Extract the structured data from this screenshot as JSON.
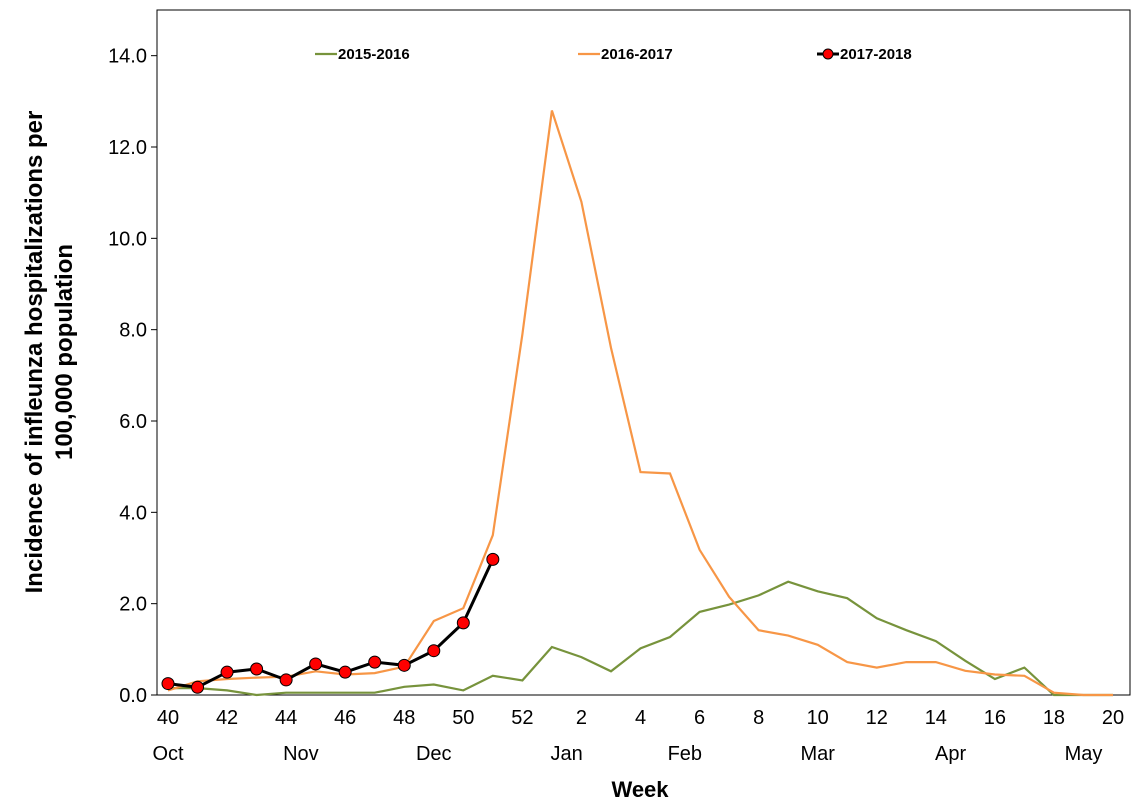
{
  "chart_data": {
    "type": "line",
    "xlabel": "Week",
    "ylabel": [
      "Incidence of infleunza hospitalizations per",
      "100,000 population"
    ],
    "categories": [
      "40",
      null,
      "42",
      null,
      "44",
      null,
      "46",
      null,
      "48",
      null,
      "50",
      null,
      "52",
      null,
      "2",
      null,
      "4",
      null,
      "6",
      null,
      "8",
      null,
      "10",
      null,
      "12",
      null,
      "14",
      null,
      "16",
      null,
      "18",
      null,
      "20"
    ],
    "months": [
      "Oct",
      null,
      null,
      null,
      null,
      null,
      null,
      null,
      null,
      null,
      null,
      null,
      null,
      null,
      null,
      null,
      null,
      null,
      null,
      null,
      null,
      null,
      null,
      null,
      null,
      null,
      null,
      null,
      null,
      null,
      null,
      null,
      null
    ],
    "month_labels": [
      {
        "index": 0,
        "label": "Oct"
      },
      {
        "index": 4.5,
        "label": "Nov"
      },
      {
        "index": 9,
        "label": "Dec"
      },
      {
        "index": 13.5,
        "label": "Jan"
      },
      {
        "index": 17.5,
        "label": "Feb"
      },
      {
        "index": 22,
        "label": "Mar"
      },
      {
        "index": 26.5,
        "label": "Apr"
      },
      {
        "index": 31,
        "label": "May"
      }
    ],
    "series": [
      {
        "name": "2015-2016",
        "color": "#77933c",
        "marker": false,
        "values": [
          0.15,
          0.15,
          0.1,
          0.0,
          0.05,
          0.05,
          0.05,
          0.05,
          0.18,
          0.23,
          0.1,
          0.42,
          0.32,
          1.05,
          0.83,
          0.52,
          1.02,
          1.27,
          1.82,
          1.98,
          2.18,
          2.48,
          2.27,
          2.12,
          1.68,
          1.42,
          1.18,
          0.75,
          0.35,
          0.6,
          0.0,
          0.0,
          0.0
        ]
      },
      {
        "name": "2016-2017",
        "color": "#f79646",
        "marker": false,
        "values": [
          0.1,
          0.3,
          0.35,
          0.38,
          0.4,
          0.52,
          0.45,
          0.48,
          0.62,
          1.62,
          1.9,
          3.5,
          7.9,
          12.8,
          10.8,
          7.6,
          4.88,
          4.85,
          3.18,
          2.15,
          1.42,
          1.3,
          1.1,
          0.72,
          0.6,
          0.72,
          0.72,
          0.53,
          0.45,
          0.42,
          0.05,
          0.0,
          0.0
        ]
      },
      {
        "name": "2017-2018",
        "color": "#000000",
        "marker": true,
        "marker_color": "#ff0000",
        "values": [
          0.25,
          0.17,
          0.5,
          0.57,
          0.33,
          0.68,
          0.5,
          0.72,
          0.65,
          0.97,
          1.58,
          2.97,
          null,
          null,
          null,
          null,
          null,
          null,
          null,
          null,
          null,
          null,
          null,
          null,
          null,
          null,
          null,
          null,
          null,
          null,
          null,
          null,
          null
        ]
      }
    ],
    "ylim": [
      0,
      15
    ],
    "yticks": [
      {
        "value": 0,
        "label": "0.0"
      },
      {
        "value": 2,
        "label": "2.0"
      },
      {
        "value": 4,
        "label": "4.0"
      },
      {
        "value": 6,
        "label": "6.0"
      },
      {
        "value": 8,
        "label": "8.0"
      },
      {
        "value": 10,
        "label": "10.0"
      },
      {
        "value": 12,
        "label": "12.0"
      },
      {
        "value": 14,
        "label": "14.0"
      }
    ],
    "legend": "top"
  }
}
